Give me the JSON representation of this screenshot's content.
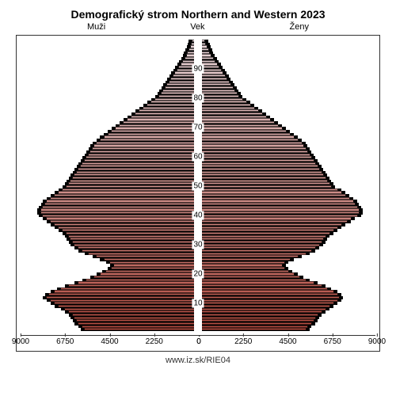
{
  "chart": {
    "type": "population-pyramid",
    "title": "Demografický strom Northern and Western 2023",
    "label_male": "Muži",
    "label_age": "Vek",
    "label_female": "Ženy",
    "footer": "www.iz.sk/RIE04",
    "background_color": "#ffffff",
    "border_color": "#333333",
    "title_fontsize": 14,
    "label_fontsize": 11,
    "tick_fontsize": 10,
    "x_max": 9000,
    "x_ticks_left": [
      9000,
      6750,
      4500,
      2250,
      0
    ],
    "x_ticks_right": [
      0,
      2250,
      4500,
      6750,
      9000
    ],
    "y_ticks": [
      10,
      20,
      30,
      40,
      50,
      60,
      70,
      80,
      90
    ],
    "age_min": 0,
    "age_max": 100,
    "gradient_bottom": "#b24a3e",
    "gradient_top": "#e8d5d8",
    "shadow_color": "#000000",
    "male": [
      5600,
      5700,
      5900,
      6000,
      6100,
      6200,
      6400,
      6600,
      6900,
      7100,
      7300,
      7500,
      7400,
      7100,
      6800,
      6400,
      5900,
      5500,
      5100,
      4800,
      4500,
      4200,
      4100,
      4300,
      4600,
      5000,
      5400,
      5700,
      5900,
      6100,
      6200,
      6300,
      6400,
      6500,
      6700,
      6900,
      7100,
      7300,
      7500,
      7700,
      7800,
      7800,
      7700,
      7600,
      7500,
      7300,
      7100,
      6900,
      6700,
      6500,
      6400,
      6300,
      6200,
      6100,
      6000,
      5900,
      5800,
      5700,
      5600,
      5500,
      5400,
      5300,
      5200,
      5100,
      5000,
      4800,
      4600,
      4400,
      4200,
      4000,
      3800,
      3600,
      3400,
      3200,
      3000,
      2800,
      2600,
      2400,
      2200,
      2000,
      1800,
      1700,
      1600,
      1500,
      1400,
      1300,
      1200,
      1100,
      1000,
      900,
      800,
      700,
      600,
      500,
      420,
      350,
      280,
      220,
      170,
      130
    ],
    "female": [
      5300,
      5400,
      5600,
      5700,
      5800,
      5900,
      6100,
      6300,
      6500,
      6700,
      6900,
      7000,
      6900,
      6700,
      6400,
      6100,
      5700,
      5300,
      5000,
      4700,
      4400,
      4200,
      4100,
      4200,
      4500,
      4900,
      5300,
      5600,
      5800,
      6000,
      6100,
      6200,
      6300,
      6500,
      6700,
      6900,
      7100,
      7400,
      7600,
      7900,
      8000,
      8000,
      7900,
      7800,
      7700,
      7500,
      7300,
      7100,
      6900,
      6600,
      6500,
      6400,
      6300,
      6200,
      6100,
      6000,
      5900,
      5800,
      5700,
      5600,
      5500,
      5400,
      5300,
      5200,
      5100,
      4900,
      4700,
      4500,
      4300,
      4100,
      3900,
      3700,
      3500,
      3300,
      3100,
      2900,
      2700,
      2500,
      2300,
      2100,
      1900,
      1800,
      1700,
      1600,
      1500,
      1400,
      1300,
      1200,
      1100,
      1000,
      900,
      800,
      700,
      600,
      500,
      420,
      350,
      280,
      220,
      170
    ],
    "shadow_offset_pct": 3
  }
}
